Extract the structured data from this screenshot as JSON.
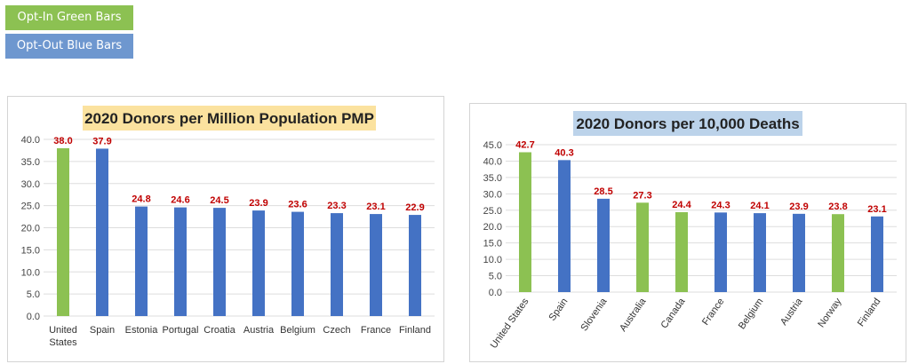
{
  "legend": {
    "green_label": "Opt-In Green Bars",
    "blue_label": "Opt-Out Blue Bars"
  },
  "colors": {
    "opt_in": "#8cc152",
    "opt_out": "#4472c4",
    "value_label": "#c00000"
  },
  "chart_data": [
    {
      "type": "bar",
      "title": "2020 Donors per Million Population PMP",
      "categories": [
        "United States",
        "Spain",
        "Estonia",
        "Portugal",
        "Croatia",
        "Austria",
        "Belgium",
        "Czech",
        "France",
        "Finland"
      ],
      "category_lines": [
        [
          "United",
          "States"
        ],
        [
          "Spain"
        ],
        [
          "Estonia"
        ],
        [
          "Portugal"
        ],
        [
          "Croatia"
        ],
        [
          "Austria"
        ],
        [
          "Belgium"
        ],
        [
          "Czech"
        ],
        [
          "France"
        ],
        [
          "Finland"
        ]
      ],
      "values": [
        38.0,
        37.9,
        24.8,
        24.6,
        24.5,
        23.9,
        23.6,
        23.3,
        23.1,
        22.9
      ],
      "value_labels": [
        "38.0",
        "37.9",
        "24.8",
        "24.6",
        "24.5",
        "23.9",
        "23.6",
        "23.3",
        "23.1",
        "22.9"
      ],
      "opt_in": [
        true,
        false,
        false,
        false,
        false,
        false,
        false,
        false,
        false,
        false
      ],
      "ylim": [
        0,
        40
      ],
      "ytick_labels": [
        "0.0",
        "5.0",
        "10.0",
        "15.0",
        "20.0",
        "25.0",
        "30.0",
        "35.0",
        "40.0"
      ],
      "xlabel": "",
      "ylabel": ""
    },
    {
      "type": "bar",
      "title": "2020 Donors per 10,000 Deaths",
      "categories": [
        "United States",
        "Spain",
        "Slovenia",
        "Australia",
        "Canada",
        "France",
        "Belgium",
        "Austria",
        "Norway",
        "Finland"
      ],
      "values": [
        42.7,
        40.3,
        28.5,
        27.3,
        24.4,
        24.3,
        24.1,
        23.9,
        23.8,
        23.1
      ],
      "value_labels": [
        "42.7",
        "40.3",
        "28.5",
        "27.3",
        "24.4",
        "24.3",
        "24.1",
        "23.9",
        "23.8",
        "23.1"
      ],
      "opt_in": [
        true,
        false,
        false,
        true,
        true,
        false,
        false,
        false,
        true,
        false
      ],
      "ylim": [
        0,
        45
      ],
      "ytick_labels": [
        "0.0",
        "5.0",
        "10.0",
        "15.0",
        "20.0",
        "25.0",
        "30.0",
        "35.0",
        "40.0",
        "45.0"
      ],
      "xlabel": "",
      "ylabel": ""
    }
  ]
}
